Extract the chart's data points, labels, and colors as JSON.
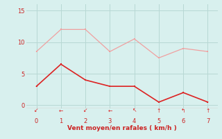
{
  "x": [
    0,
    1,
    2,
    3,
    4,
    5,
    6,
    7
  ],
  "y_rafales": [
    8.5,
    12.0,
    12.0,
    8.5,
    10.5,
    7.5,
    9.0,
    8.5
  ],
  "y_moyen": [
    3.0,
    6.5,
    4.0,
    3.0,
    3.0,
    0.5,
    2.0,
    0.5
  ],
  "color_rafales": "#f0a0a0",
  "color_moyen": "#dd2222",
  "bg_color": "#d8f0ee",
  "grid_color": "#b8d8d4",
  "axis_color": "#cc3333",
  "xlabel": "Vent moyen/en rafales ( km/h )",
  "xlabel_color": "#cc2222",
  "tick_color": "#cc2222",
  "xlim": [
    -0.4,
    7.4
  ],
  "ylim": [
    -0.5,
    16.0
  ],
  "xticks": [
    0,
    1,
    2,
    3,
    4,
    5,
    6,
    7
  ],
  "yticks": [
    0,
    5,
    10,
    15
  ],
  "arrow_chars": [
    "↙",
    "←",
    "↙",
    "←",
    "↖",
    "↑",
    "↰",
    "↑"
  ],
  "figsize": [
    3.2,
    2.0
  ],
  "dpi": 100
}
